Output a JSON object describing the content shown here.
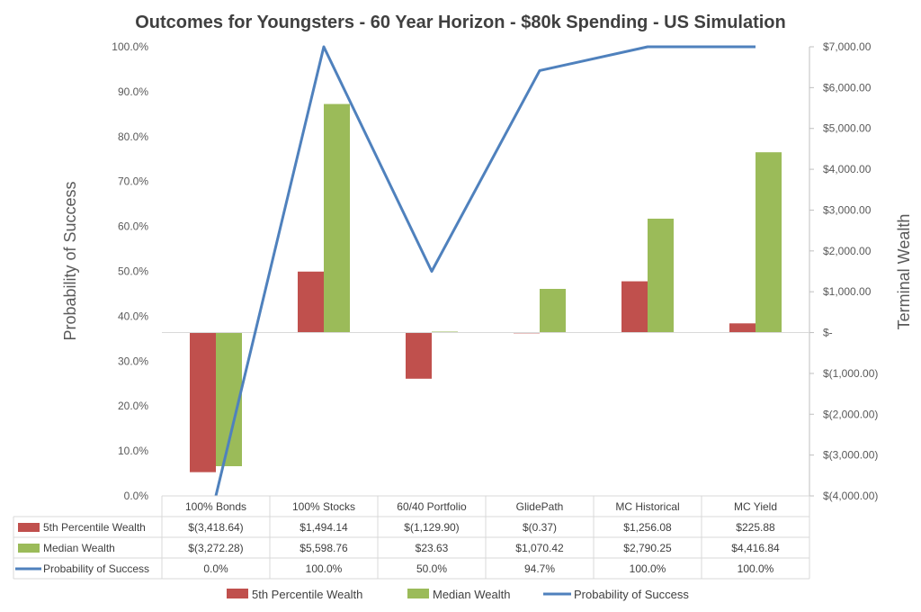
{
  "chart_data": {
    "type": "bar",
    "title": "Outcomes for Youngsters - 60 Year Horizon - $80k Spending - US Simulation",
    "ylabel_left": "Probability of Success",
    "ylabel_right": "Terminal Wealth",
    "categories": [
      "100% Bonds",
      "100% Stocks",
      "60/40 Portfolio",
      "GlidePath",
      "MC Historical",
      "MC Yield"
    ],
    "left_ticks": [
      "0.0%",
      "10.0%",
      "20.0%",
      "30.0%",
      "40.0%",
      "50.0%",
      "60.0%",
      "70.0%",
      "80.0%",
      "90.0%",
      "100.0%"
    ],
    "right_ticks": [
      "$(4,000.00)",
      "$(3,000.00)",
      "$(2,000.00)",
      "$(1,000.00)",
      "$-",
      "$1,000.00",
      "$2,000.00",
      "$3,000.00",
      "$4,000.00",
      "$5,000.00",
      "$6,000.00",
      "$7,000.00"
    ],
    "ylim_left": [
      0,
      100
    ],
    "ylim_right": [
      -4000,
      7000
    ],
    "series": [
      {
        "name": "5th Percentile Wealth",
        "kind": "bar",
        "axis": "right",
        "color": "#c0504d",
        "values": [
          -3418.64,
          1494.14,
          -1129.9,
          -0.37,
          1256.08,
          225.88
        ],
        "labels": [
          "$(3,418.64)",
          "$1,494.14",
          "$(1,129.90)",
          "$(0.37)",
          "$1,256.08",
          "$225.88"
        ]
      },
      {
        "name": "Median Wealth",
        "kind": "bar",
        "axis": "right",
        "color": "#9bbb59",
        "values": [
          -3272.28,
          5598.76,
          23.63,
          1070.42,
          2790.25,
          4416.84
        ],
        "labels": [
          "$(3,272.28)",
          "$5,598.76",
          "$23.63",
          "$1,070.42",
          "$2,790.25",
          "$4,416.84"
        ]
      },
      {
        "name": "Probability of Success",
        "kind": "line",
        "axis": "left",
        "color": "#4f81bd",
        "values": [
          0.0,
          100.0,
          50.0,
          94.7,
          100.0,
          100.0
        ],
        "labels": [
          "0.0%",
          "100.0%",
          "50.0%",
          "94.7%",
          "100.0%",
          "100.0%"
        ]
      }
    ],
    "legend_position": "bottom",
    "grid": false
  }
}
